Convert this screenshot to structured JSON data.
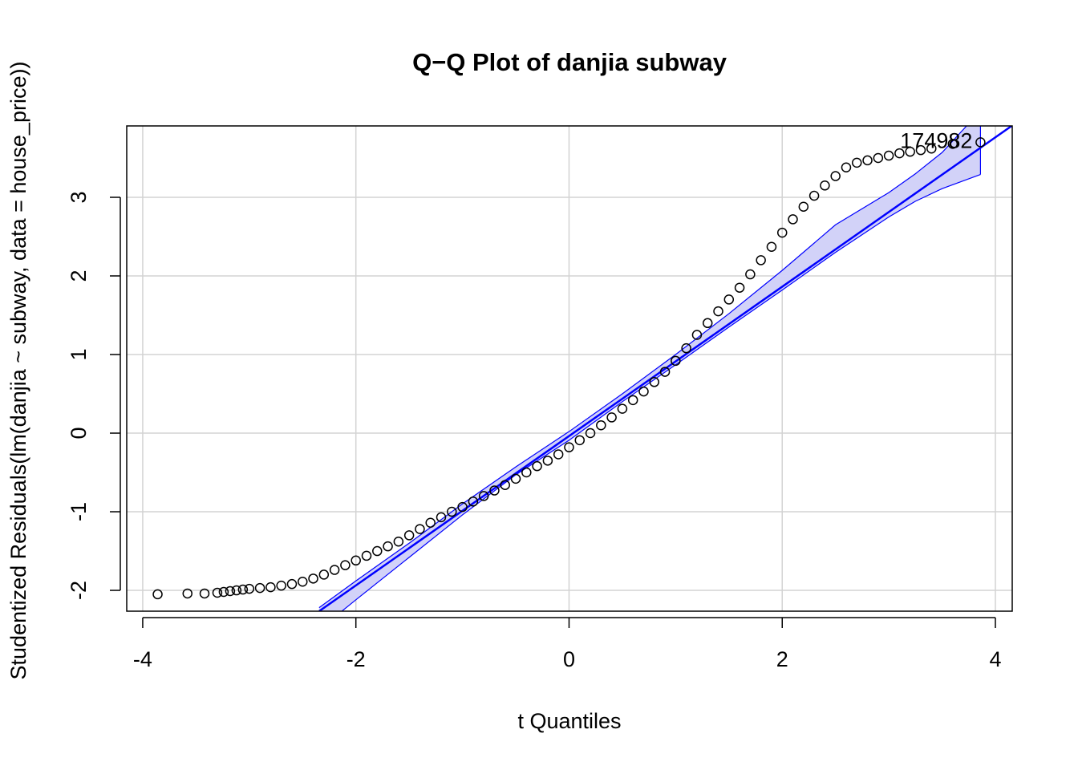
{
  "chart_data": {
    "type": "scatter",
    "title": "Q−Q Plot of danjia subway",
    "x_label": "t Quantiles",
    "y_label": "Studentized Residuals(lm(danjia ~ subway, data = house_price))",
    "xlim": [
      -4.15,
      4.158
    ],
    "ylim": [
      -2.265,
      3.908
    ],
    "xticks": [
      -4,
      -2,
      0,
      2,
      4
    ],
    "yticks": [
      -2,
      -1,
      0,
      1,
      2,
      3
    ],
    "grid": true,
    "points": {
      "color": "#000000",
      "x": [
        -3.86,
        -3.58,
        -3.42,
        -3.3,
        -3.24,
        -3.18,
        -3.12,
        -3.06,
        -3.0,
        -2.9,
        -2.8,
        -2.7,
        -2.6,
        -2.5,
        -2.4,
        -2.3,
        -2.2,
        -2.1,
        -2.0,
        -1.9,
        -1.8,
        -1.7,
        -1.6,
        -1.5,
        -1.4,
        -1.3,
        -1.2,
        -1.1,
        -1.0,
        -0.9,
        -0.8,
        -0.7,
        -0.6,
        -0.5,
        -0.4,
        -0.3,
        -0.2,
        -0.1,
        0.0,
        0.1,
        0.2,
        0.3,
        0.4,
        0.5,
        0.6,
        0.7,
        0.8,
        0.9,
        1.0,
        1.1,
        1.2,
        1.3,
        1.4,
        1.5,
        1.6,
        1.7,
        1.8,
        1.9,
        2.0,
        2.1,
        2.2,
        2.3,
        2.4,
        2.5,
        2.6,
        2.7,
        2.8,
        2.9,
        3.0,
        3.1,
        3.2,
        3.3,
        3.4,
        3.6,
        3.86
      ],
      "y": [
        -2.05,
        -2.04,
        -2.04,
        -2.03,
        -2.02,
        -2.01,
        -2.0,
        -1.99,
        -1.98,
        -1.97,
        -1.96,
        -1.94,
        -1.92,
        -1.89,
        -1.85,
        -1.8,
        -1.74,
        -1.68,
        -1.62,
        -1.56,
        -1.5,
        -1.44,
        -1.38,
        -1.3,
        -1.22,
        -1.14,
        -1.07,
        -1.0,
        -0.94,
        -0.87,
        -0.8,
        -0.73,
        -0.66,
        -0.58,
        -0.5,
        -0.42,
        -0.35,
        -0.27,
        -0.18,
        -0.09,
        0.0,
        0.1,
        0.2,
        0.31,
        0.42,
        0.53,
        0.65,
        0.78,
        0.92,
        1.08,
        1.25,
        1.4,
        1.55,
        1.7,
        1.85,
        2.02,
        2.2,
        2.37,
        2.55,
        2.72,
        2.88,
        3.02,
        3.15,
        3.27,
        3.38,
        3.44,
        3.47,
        3.5,
        3.53,
        3.56,
        3.58,
        3.6,
        3.62,
        3.68,
        3.7
      ]
    },
    "reference_line": {
      "color": "#0000ff",
      "x": [
        -2.345,
        4.158
      ],
      "y": [
        -2.265,
        3.913
      ]
    },
    "band": {
      "color": "#0000ff",
      "fill": "#d2d2f8",
      "x": [
        -2.345,
        -2.0,
        -1.5,
        -1.0,
        -0.5,
        0.0,
        0.5,
        1.0,
        1.5,
        2.0,
        2.5,
        3.0,
        3.25,
        3.5,
        3.86
      ],
      "upper": [
        -2.22,
        -1.88,
        -1.4,
        -0.9,
        -0.43,
        0.02,
        0.5,
        1.0,
        1.52,
        2.07,
        2.65,
        3.06,
        3.3,
        3.57,
        4.1
      ],
      "lower": [
        -2.5,
        -2.12,
        -1.58,
        -1.04,
        -0.53,
        -0.09,
        0.4,
        0.87,
        1.35,
        1.82,
        2.3,
        2.75,
        2.95,
        3.11,
        3.29
      ]
    },
    "annotation": "174982"
  }
}
